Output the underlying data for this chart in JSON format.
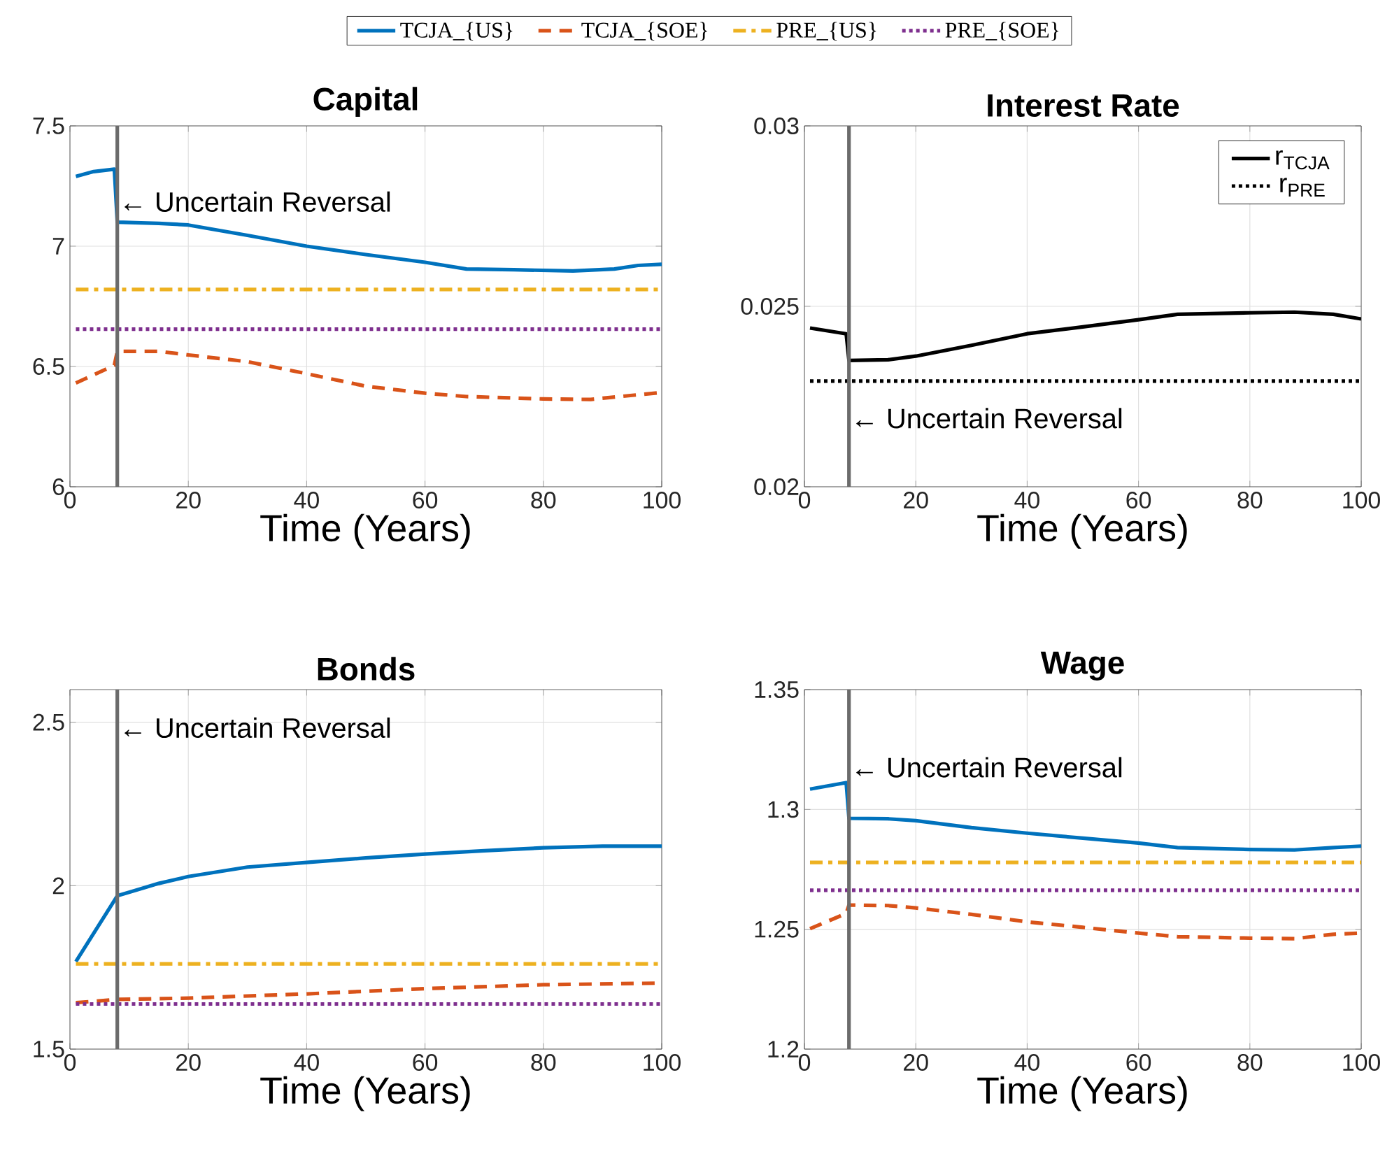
{
  "chart_data": [
    {
      "type": "line",
      "title": "Capital",
      "xlabel": "Time (Years)",
      "xlim": [
        0,
        100
      ],
      "xticks": [
        0,
        20,
        40,
        60,
        80,
        100
      ],
      "ylim": [
        6,
        7.5
      ],
      "yticks": [
        6,
        6.5,
        7,
        7.5
      ],
      "grid": true,
      "legend": "top",
      "marker": "none",
      "ref_lines": [
        {
          "axis": "x",
          "value": 8,
          "color": "#6b6b6b",
          "label": "← Uncertain Reversal"
        }
      ],
      "series": [
        {
          "name": "TCJA_{US}",
          "color": "#0072bd",
          "line_style": "solid",
          "x": [
            1,
            4,
            7.5,
            8,
            15,
            20,
            30,
            40,
            50,
            60,
            67,
            75,
            85,
            92,
            96,
            100
          ],
          "values": [
            7.29,
            7.31,
            7.32,
            7.1,
            7.095,
            7.088,
            7.045,
            7.0,
            6.965,
            6.933,
            6.905,
            6.902,
            6.897,
            6.905,
            6.92,
            6.925
          ]
        },
        {
          "name": "TCJA_{SOE}",
          "color": "#d95319",
          "line_style": "dashed",
          "x": [
            1,
            7.5,
            8,
            15,
            20,
            30,
            40,
            50,
            60,
            67,
            80,
            88,
            95,
            100
          ],
          "values": [
            6.431,
            6.505,
            6.563,
            6.563,
            6.548,
            6.52,
            6.47,
            6.418,
            6.389,
            6.375,
            6.365,
            6.363,
            6.38,
            6.392
          ]
        },
        {
          "name": "PRE_{US}",
          "color": "#edb120",
          "line_style": "dashdot",
          "x": [
            1,
            100
          ],
          "values": [
            6.82,
            6.82
          ]
        },
        {
          "name": "PRE_{SOE}",
          "color": "#7e2f8e",
          "line_style": "dotted",
          "x": [
            1,
            100
          ],
          "values": [
            6.655,
            6.655
          ]
        }
      ]
    },
    {
      "type": "line",
      "title": "Interest Rate",
      "xlabel": "Time (Years)",
      "xlim": [
        0,
        100
      ],
      "xticks": [
        0,
        20,
        40,
        60,
        80,
        100
      ],
      "ylim": [
        0.02,
        0.03
      ],
      "yticks": [
        0.02,
        0.025,
        0.03
      ],
      "grid": true,
      "legend": "top right",
      "marker": "none",
      "ref_lines": [
        {
          "axis": "x",
          "value": 8,
          "color": "#6b6b6b",
          "label": "← Uncertain Reversal"
        }
      ],
      "series": [
        {
          "name": "r$_{TCJA}$",
          "color": "#000000",
          "line_style": "solid",
          "x": [
            1,
            7.5,
            8,
            15,
            20,
            30,
            40,
            50,
            60,
            67,
            80,
            88,
            95,
            100
          ],
          "values": [
            0.0244,
            0.02424,
            0.0235,
            0.02352,
            0.02362,
            0.02392,
            0.02424,
            0.02443,
            0.02463,
            0.02478,
            0.02482,
            0.02484,
            0.02478,
            0.02465
          ]
        },
        {
          "name": "r$_{PRE}$",
          "color": "#000000",
          "line_style": "dotted",
          "x": [
            1,
            100
          ],
          "values": [
            0.02293,
            0.02293
          ]
        }
      ]
    },
    {
      "type": "line",
      "title": "Bonds",
      "xlabel": "Time (Years)",
      "xlim": [
        0,
        100
      ],
      "xticks": [
        0,
        20,
        40,
        60,
        80,
        100
      ],
      "ylim": [
        1.5,
        2.6
      ],
      "yticks": [
        1.5,
        2,
        2.5
      ],
      "grid": true,
      "marker": "none",
      "ref_lines": [
        {
          "axis": "x",
          "value": 8,
          "color": "#6b6b6b",
          "label": "← Uncertain Reversal"
        }
      ],
      "series": [
        {
          "color": "#0072bd",
          "line_style": "solid",
          "x": [
            1,
            8,
            15,
            20,
            30,
            40,
            50,
            60,
            70,
            80,
            90,
            100
          ],
          "values": [
            1.768,
            1.969,
            2.007,
            2.028,
            2.057,
            2.071,
            2.085,
            2.097,
            2.107,
            2.116,
            2.121,
            2.121
          ]
        },
        {
          "color": "#d95319",
          "line_style": "dashed",
          "x": [
            1,
            8,
            20,
            40,
            60,
            80,
            100
          ],
          "values": [
            1.642,
            1.652,
            1.656,
            1.669,
            1.685,
            1.697,
            1.702
          ]
        },
        {
          "color": "#edb120",
          "line_style": "dashdot",
          "x": [
            1,
            100
          ],
          "values": [
            1.761,
            1.761
          ]
        },
        {
          "color": "#7e2f8e",
          "line_style": "dotted",
          "x": [
            1,
            100
          ],
          "values": [
            1.638,
            1.638
          ]
        }
      ]
    },
    {
      "type": "line",
      "title": "Wage",
      "xlabel": "Time (Years)",
      "xlim": [
        0,
        100
      ],
      "xticks": [
        0,
        20,
        40,
        60,
        80,
        100
      ],
      "ylim": [
        1.2,
        1.35
      ],
      "yticks": [
        1.2,
        1.25,
        1.3,
        1.35
      ],
      "grid": true,
      "marker": "none",
      "ref_lines": [
        {
          "axis": "x",
          "value": 8,
          "color": "#6b6b6b",
          "label": "← Uncertain Reversal"
        }
      ],
      "series": [
        {
          "color": "#0072bd",
          "line_style": "solid",
          "x": [
            1,
            7.5,
            8,
            15,
            20,
            30,
            40,
            50,
            60,
            67,
            80,
            88,
            95,
            100
          ],
          "values": [
            1.3085,
            1.3112,
            1.2963,
            1.2961,
            1.2953,
            1.2924,
            1.2901,
            1.288,
            1.286,
            1.2841,
            1.2833,
            1.2831,
            1.2841,
            1.2847
          ]
        },
        {
          "color": "#d95319",
          "line_style": "dashed",
          "x": [
            1,
            7.5,
            8,
            15,
            20,
            30,
            40,
            50,
            60,
            67,
            80,
            88,
            95,
            100
          ],
          "values": [
            1.2502,
            1.2566,
            1.2601,
            1.2599,
            1.2589,
            1.2562,
            1.2531,
            1.2508,
            1.2484,
            1.2469,
            1.2463,
            1.2461,
            1.2479,
            1.2484
          ]
        },
        {
          "color": "#edb120",
          "line_style": "dashdot",
          "x": [
            1,
            100
          ],
          "values": [
            1.2779,
            1.2779
          ]
        },
        {
          "color": "#7e2f8e",
          "line_style": "dotted",
          "x": [
            1,
            100
          ],
          "values": [
            1.2663,
            1.2663
          ]
        }
      ]
    }
  ]
}
